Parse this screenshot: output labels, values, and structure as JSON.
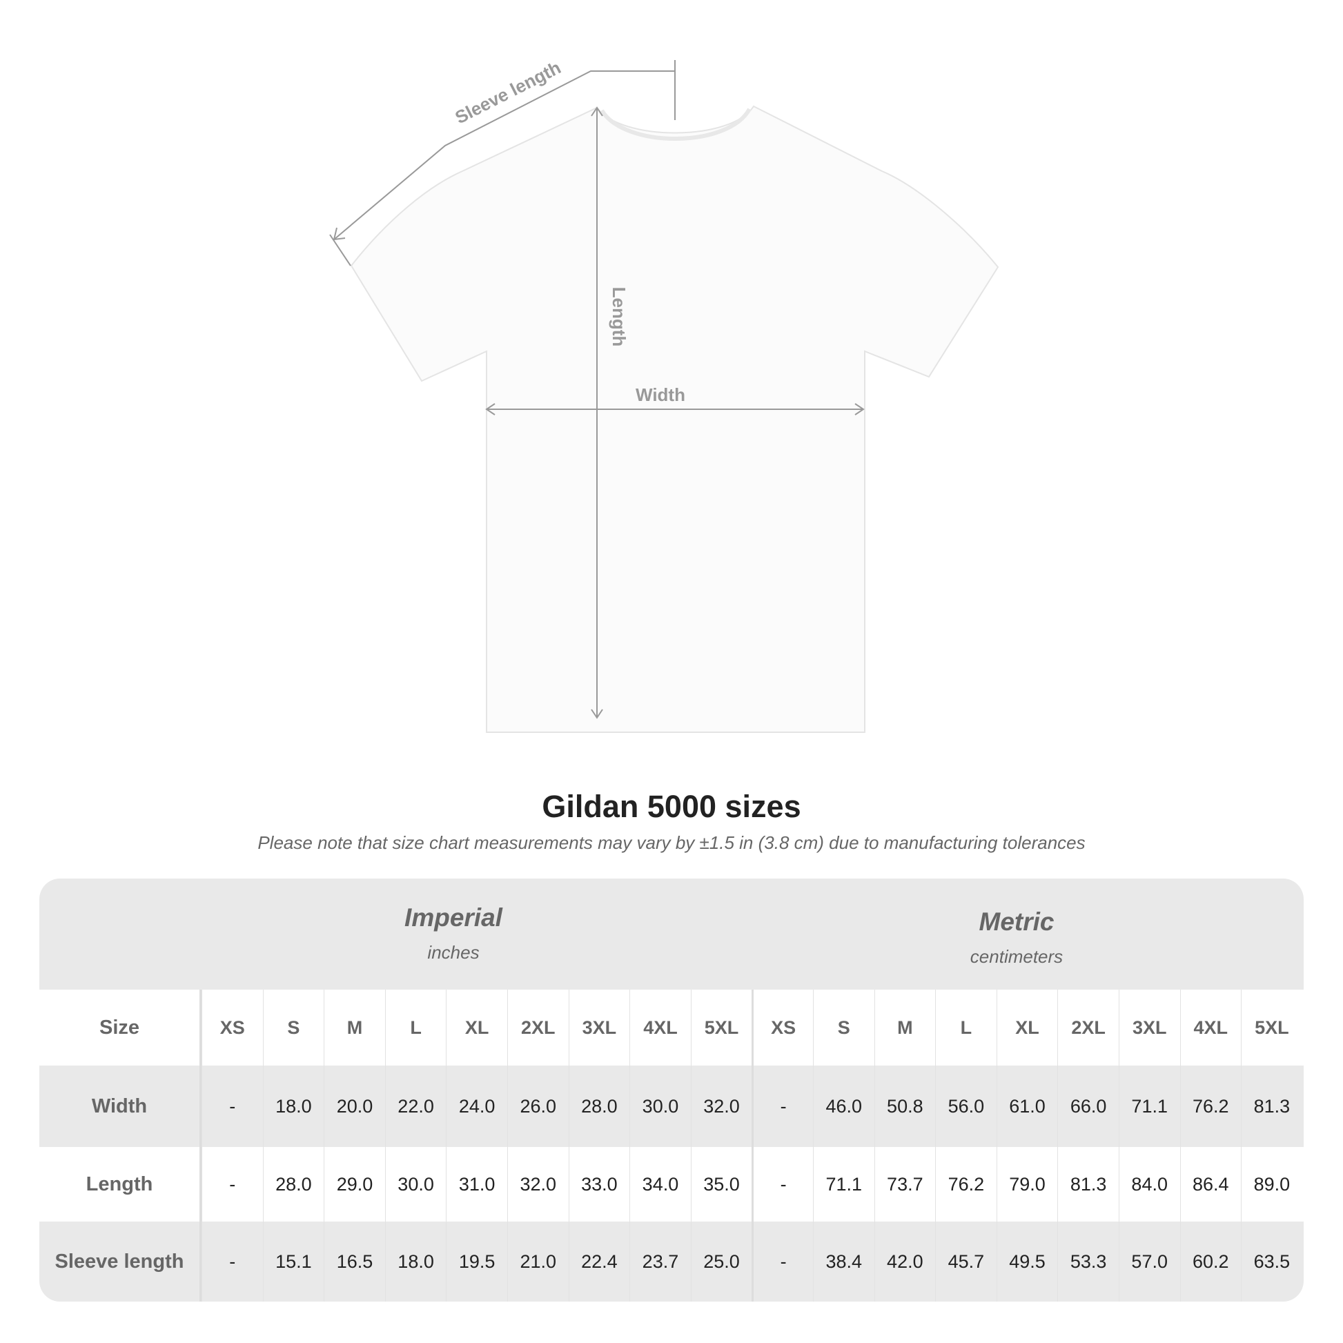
{
  "diagram": {
    "sleeve_label": "Sleeve length",
    "length_label": "Length",
    "width_label": "Width"
  },
  "title": "Gildan 5000 sizes",
  "subtitle": "Please note that size chart measurements may vary by ±1.5 in (3.8 cm) due to manufacturing tolerances",
  "table": {
    "imperial": {
      "heading": "Imperial",
      "unit": "inches"
    },
    "metric": {
      "heading": "Metric",
      "unit": "centimeters"
    },
    "header_label": "Size",
    "sizes": [
      "XS",
      "S",
      "M",
      "L",
      "XL",
      "2XL",
      "3XL",
      "4XL",
      "5XL"
    ],
    "rows": [
      {
        "label": "Width",
        "imperial": [
          "-",
          "18.0",
          "20.0",
          "22.0",
          "24.0",
          "26.0",
          "28.0",
          "30.0",
          "32.0"
        ],
        "metric": [
          "-",
          "46.0",
          "50.8",
          "56.0",
          "61.0",
          "66.0",
          "71.1",
          "76.2",
          "81.3"
        ]
      },
      {
        "label": "Length",
        "imperial": [
          "-",
          "28.0",
          "29.0",
          "30.0",
          "31.0",
          "32.0",
          "33.0",
          "34.0",
          "35.0"
        ],
        "metric": [
          "-",
          "71.1",
          "73.7",
          "76.2",
          "79.0",
          "81.3",
          "84.0",
          "86.4",
          "89.0"
        ]
      },
      {
        "label": "Sleeve length",
        "imperial": [
          "-",
          "15.1",
          "16.5",
          "18.0",
          "19.5",
          "21.0",
          "22.4",
          "23.7",
          "25.0"
        ],
        "metric": [
          "-",
          "38.4",
          "42.0",
          "45.7",
          "49.5",
          "53.3",
          "57.0",
          "60.2",
          "63.5"
        ]
      }
    ]
  }
}
